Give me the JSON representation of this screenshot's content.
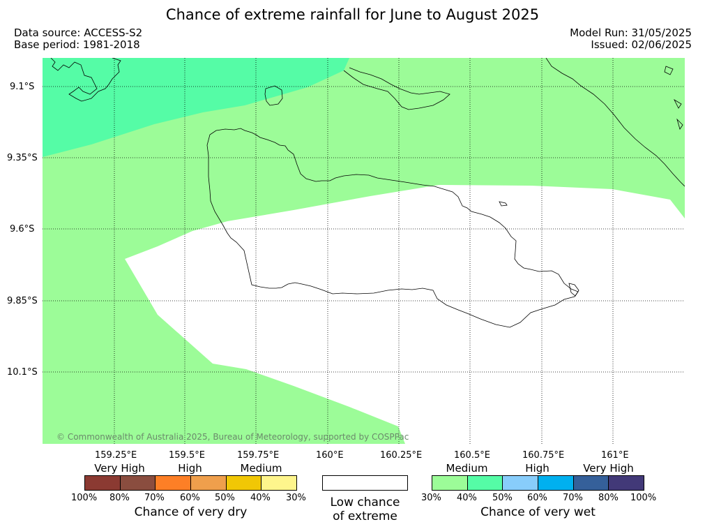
{
  "header": {
    "title": "Chance of extreme rainfall for June to August 2025",
    "data_source": "Data source: ACCESS-S2",
    "base_period": "Base period: 1981-2018",
    "model_run": "Model Run: 31/05/2025",
    "issued": "Issued: 02/06/2025"
  },
  "map": {
    "lat_labels": [
      "9.1°S",
      "9.35°S",
      "9.6°S",
      "9.85°S",
      "10.1°S"
    ],
    "lon_labels": [
      "159.25°E",
      "159.5°E",
      "159.75°E",
      "160°E",
      "160.25°E",
      "160.5°E",
      "160.75°E",
      "161°E"
    ],
    "copyright": "© Commonwealth of Australia 2025, Bureau of Meteorology, supported by COSPPac",
    "colors": {
      "medium_wet": "#9cfc98",
      "high_wet": "#55fca6",
      "low_chance": "#ffffff"
    }
  },
  "legend": {
    "dry": {
      "categories": [
        "Very High",
        "High",
        "Medium"
      ],
      "colors": [
        "#8b3a32",
        "#8a4d3f",
        "#fd7f26",
        "#ef9f4c",
        "#f1c705",
        "#fef58c"
      ],
      "ticks": [
        "100%",
        "80%",
        "70%",
        "60%",
        "50%",
        "40%",
        "30%"
      ],
      "title": "Chance of very dry"
    },
    "low": {
      "line1": "Low chance",
      "line2": "of extreme",
      "color": "#ffffff"
    },
    "wet": {
      "categories": [
        "Medium",
        "High",
        "Very High"
      ],
      "colors": [
        "#9cfc98",
        "#55fca6",
        "#88cdfb",
        "#00b0ef",
        "#35609a",
        "#423978"
      ],
      "ticks": [
        "30%",
        "40%",
        "50%",
        "60%",
        "70%",
        "80%",
        "100%"
      ],
      "title": "Chance of very wet"
    }
  }
}
